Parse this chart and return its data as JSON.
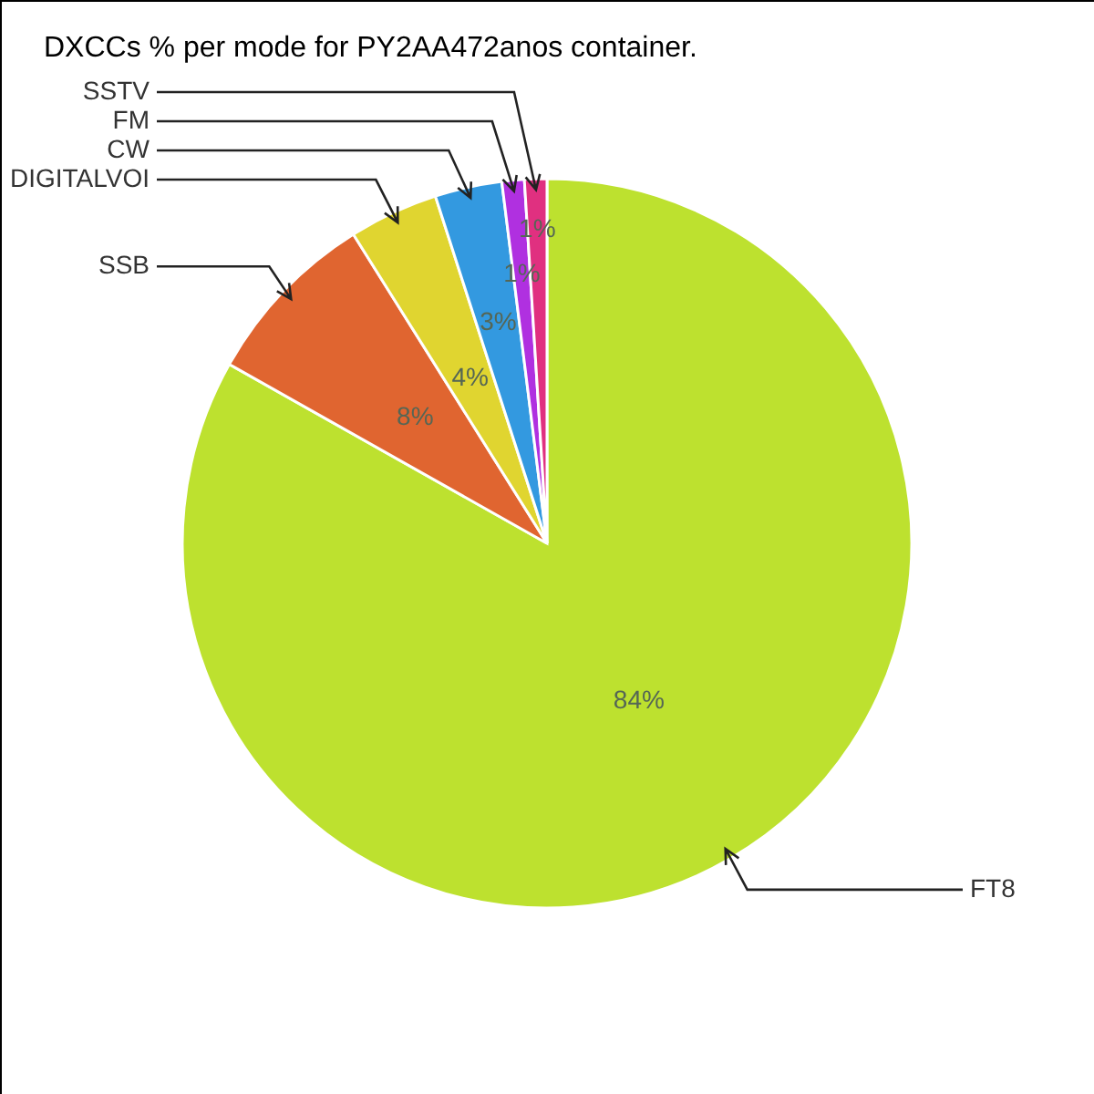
{
  "chart_data": {
    "type": "pie",
    "title": "DXCCs % per mode for PY2AA472anos container.",
    "categories": [
      "FT8",
      "SSB",
      "DIGITALVOI",
      "CW",
      "FM",
      "SSTV"
    ],
    "values": [
      84,
      8,
      4,
      3,
      1,
      1
    ],
    "value_labels": [
      "84%",
      "8%",
      "4%",
      "3%",
      "1%",
      "1%"
    ],
    "colors": [
      "#bde12f",
      "#e06530",
      "#e0d530",
      "#3399e0",
      "#b030e0",
      "#e03080"
    ]
  }
}
